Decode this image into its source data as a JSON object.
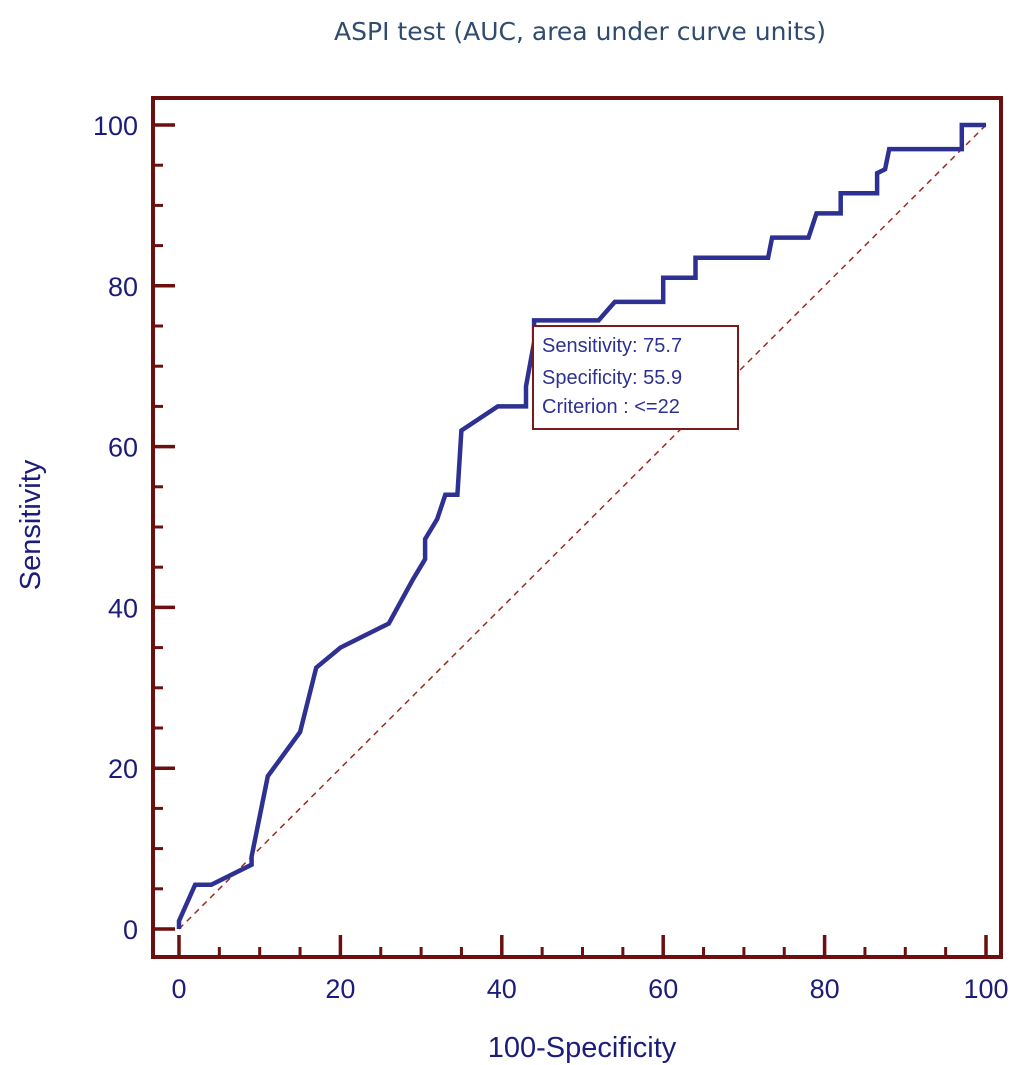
{
  "chart_data": {
    "type": "line",
    "title": "ASPI test (AUC, area under curve units)",
    "xlabel": "100-Specificity",
    "ylabel": "Sensitivity",
    "xlim": [
      0,
      100
    ],
    "ylim": [
      0,
      100
    ],
    "x_ticks": [
      0,
      20,
      40,
      60,
      80,
      100
    ],
    "y_ticks": [
      0,
      20,
      40,
      60,
      80,
      100
    ],
    "grid": false,
    "series": [
      {
        "points": [
          [
            0,
            0
          ],
          [
            0,
            1
          ],
          [
            2,
            5.5
          ],
          [
            4,
            5.5
          ],
          [
            9,
            8
          ],
          [
            9,
            9
          ],
          [
            11,
            19
          ],
          [
            15,
            24.5
          ],
          [
            17,
            32.5
          ],
          [
            20,
            35
          ],
          [
            26,
            38
          ],
          [
            29,
            43.5
          ],
          [
            30.5,
            46
          ],
          [
            30.5,
            48.5
          ],
          [
            32,
            51
          ],
          [
            33,
            54
          ],
          [
            34.5,
            54
          ],
          [
            35,
            62
          ],
          [
            39.5,
            65
          ],
          [
            43,
            65
          ],
          [
            43,
            67.5
          ],
          [
            44,
            73
          ],
          [
            44,
            75.7
          ],
          [
            52,
            75.7
          ],
          [
            54,
            78
          ],
          [
            60,
            78
          ],
          [
            60,
            81
          ],
          [
            64,
            81
          ],
          [
            64,
            83.5
          ],
          [
            73,
            83.5
          ],
          [
            73.5,
            86
          ],
          [
            78,
            86
          ],
          [
            79,
            89
          ],
          [
            82,
            89
          ],
          [
            82,
            91.5
          ],
          [
            86.5,
            91.5
          ],
          [
            86.5,
            94
          ],
          [
            87.5,
            94.5
          ],
          [
            88,
            97
          ],
          [
            97,
            97
          ],
          [
            97,
            100
          ],
          [
            100,
            100
          ]
        ]
      }
    ],
    "reference_line": {
      "from": [
        0,
        0
      ],
      "to": [
        100,
        100
      ],
      "style": "dashed"
    },
    "annotation": {
      "lines": [
        "Sensitivity: 75.7",
        "Specificity: 55.9",
        "Criterion : <=22"
      ]
    },
    "colors": {
      "curve": "#2e3192",
      "frame": "#6b0f0f",
      "diagonal": "#a0281e",
      "tick_label": "#1c1c7a",
      "title": "#2f4b6e"
    }
  }
}
